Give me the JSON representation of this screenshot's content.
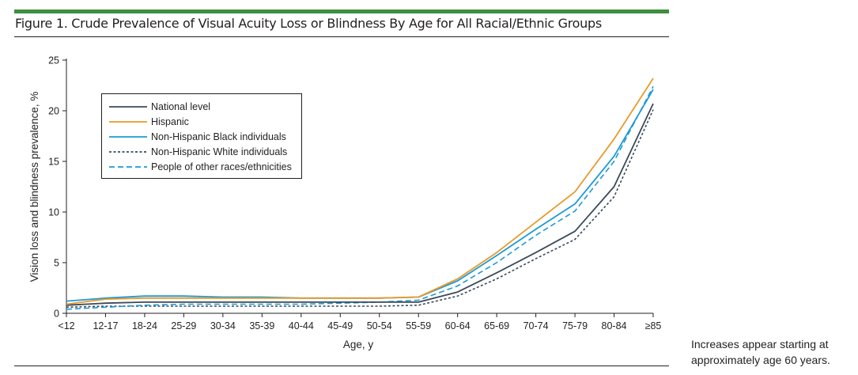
{
  "figure_title": "Figure 1. Crude Prevalence of Visual Acuity Loss or Blindness By Age for All Racial/Ethnic Groups",
  "note": "Increases appear starting at approximately age 60 years.",
  "chart_data": {
    "type": "line",
    "title": "",
    "xlabel": "Age, y",
    "ylabel": "Vision loss and blindness prevalence, %",
    "ylim": [
      0,
      25
    ],
    "yticks": [
      0,
      5,
      10,
      15,
      20,
      25
    ],
    "categories": [
      "<12",
      "12-17",
      "18-24",
      "25-29",
      "30-34",
      "35-39",
      "40-44",
      "45-49",
      "50-54",
      "55-59",
      "60-64",
      "65-69",
      "70-74",
      "75-79",
      "80-84",
      "≥85"
    ],
    "grid": false,
    "legend_position": "top-left",
    "series": [
      {
        "name": "National level",
        "color": "#3b4a57",
        "dash": "solid",
        "values": [
          0.8,
          1.0,
          1.1,
          1.1,
          1.1,
          1.1,
          1.1,
          1.1,
          1.1,
          1.1,
          2.1,
          4.0,
          6.0,
          8.1,
          12.5,
          20.7
        ]
      },
      {
        "name": "Hispanic",
        "color": "#e89a2a",
        "dash": "solid",
        "values": [
          0.9,
          1.4,
          1.5,
          1.5,
          1.5,
          1.5,
          1.5,
          1.5,
          1.5,
          1.6,
          3.4,
          6.0,
          9.0,
          12.0,
          17.2,
          23.2
        ]
      },
      {
        "name": "Non-Hispanic Black individuals",
        "color": "#1e9ad6",
        "dash": "solid",
        "values": [
          1.2,
          1.5,
          1.7,
          1.7,
          1.6,
          1.6,
          1.5,
          1.5,
          1.5,
          1.6,
          3.2,
          5.7,
          8.3,
          10.8,
          15.5,
          22.1
        ]
      },
      {
        "name": "Non-Hispanic White individuals",
        "color": "#3b4a57",
        "dash": "short",
        "values": [
          0.6,
          0.7,
          0.7,
          0.7,
          0.7,
          0.7,
          0.7,
          0.7,
          0.7,
          0.8,
          1.7,
          3.4,
          5.4,
          7.3,
          11.5,
          20.1
        ]
      },
      {
        "name": "People of other races/ethnicities",
        "color": "#1e9ad6",
        "dash": "long",
        "values": [
          0.4,
          0.6,
          0.8,
          0.9,
          0.9,
          0.9,
          0.9,
          1.0,
          1.1,
          1.3,
          2.7,
          5.0,
          7.7,
          10.1,
          15.0,
          22.4
        ]
      }
    ]
  }
}
